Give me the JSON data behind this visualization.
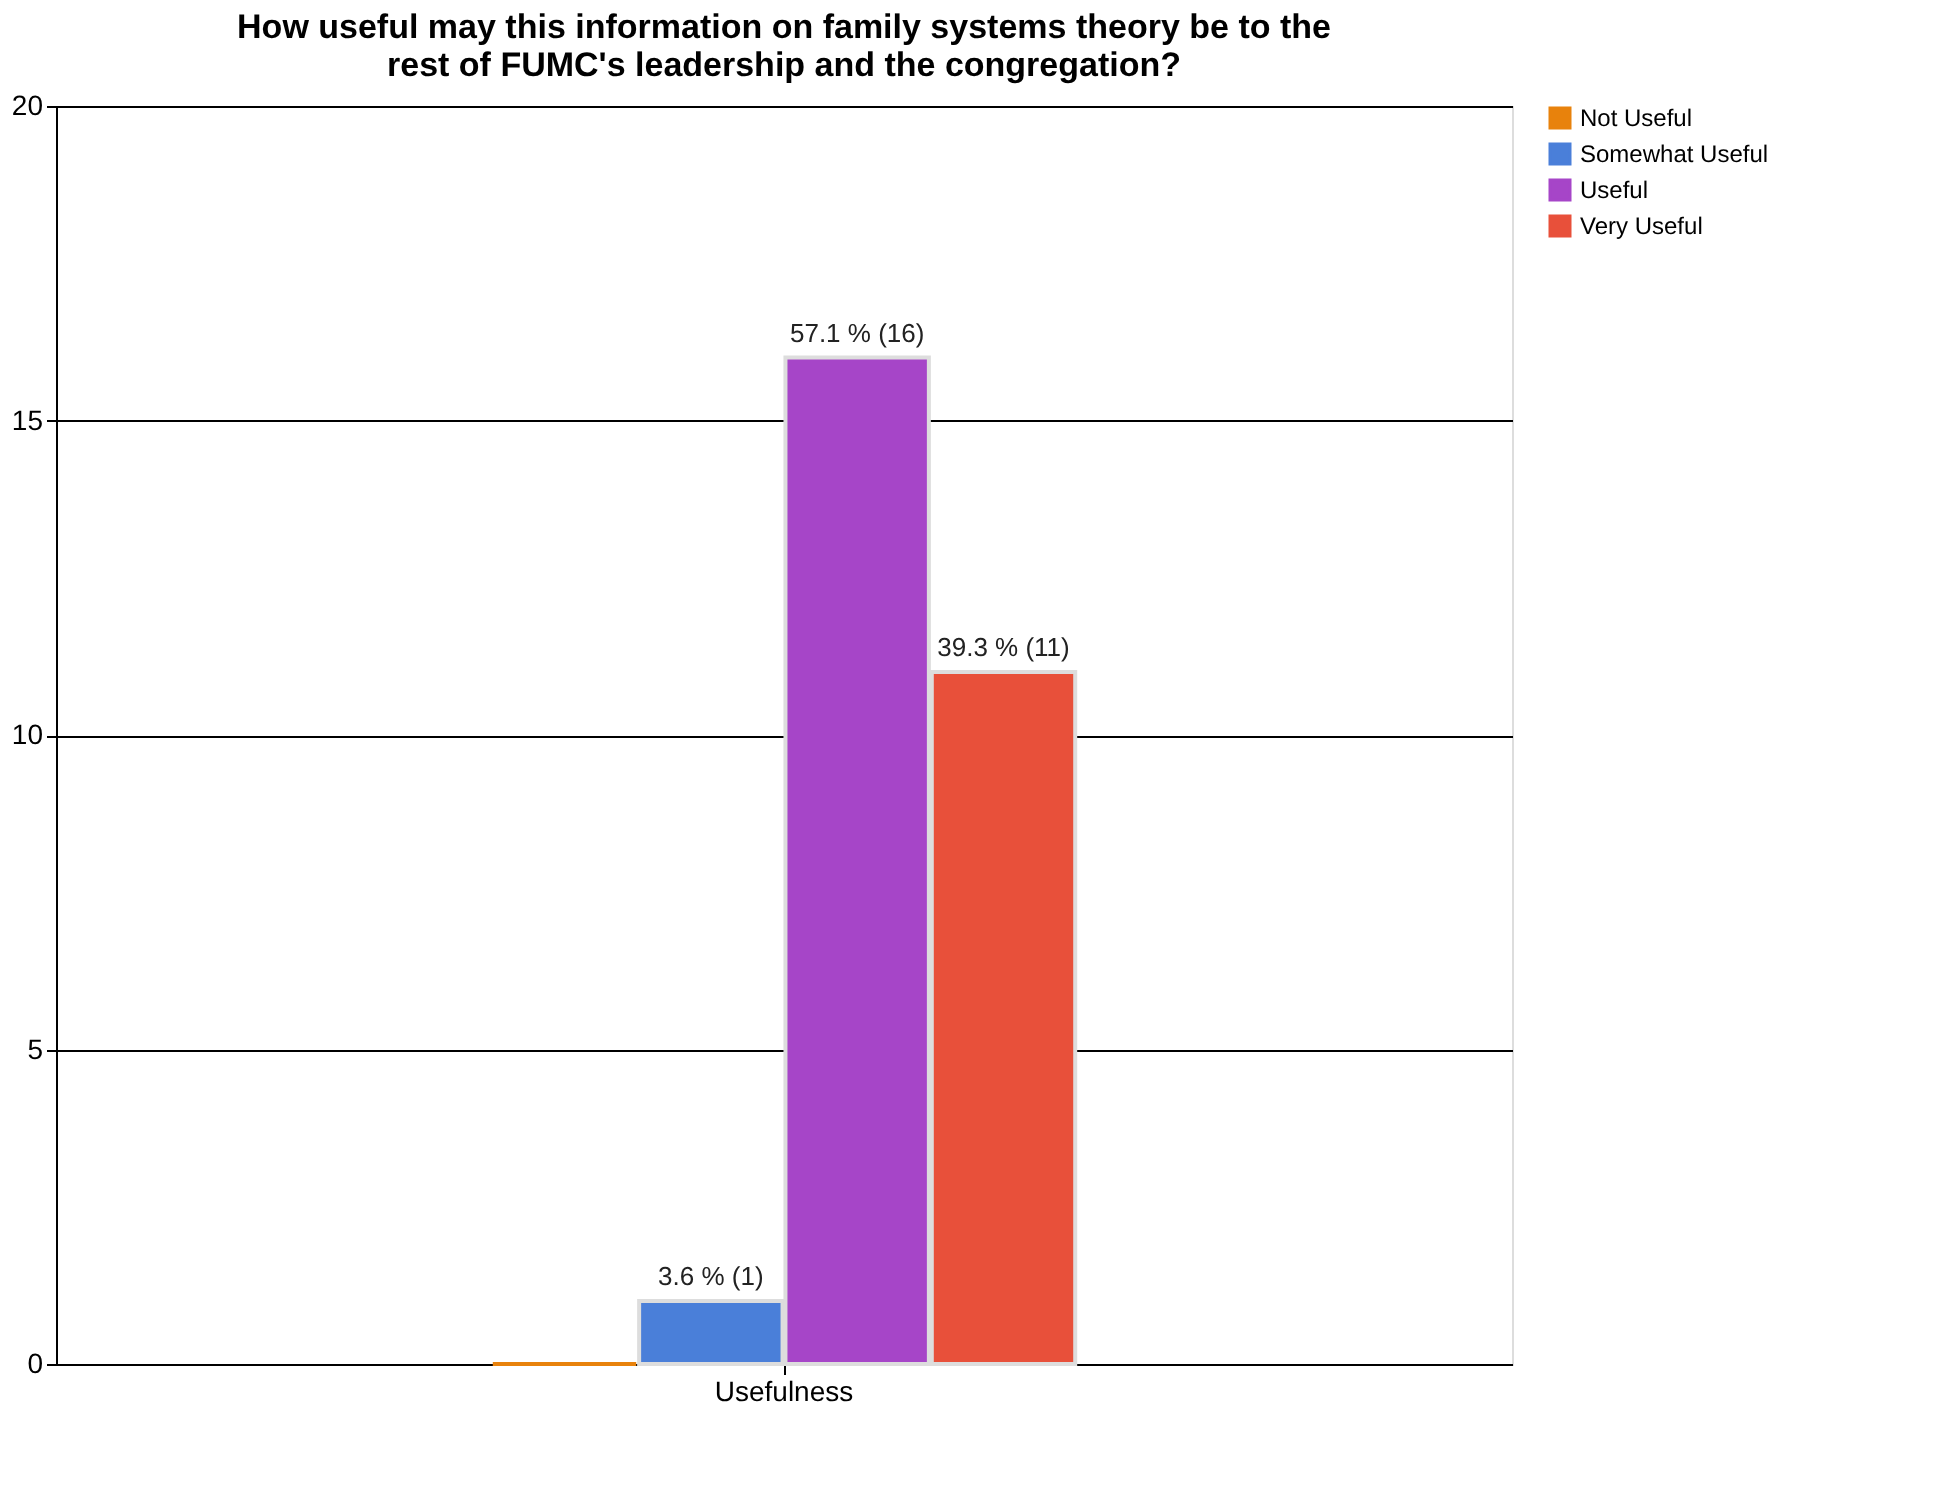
{
  "chart_data": {
    "type": "bar",
    "title": [
      "How useful may this information on family systems theory be to the",
      "rest of FUMC's leadership and the congregation?"
    ],
    "categories": [
      "Usefulness"
    ],
    "series": [
      {
        "name": "Not Useful",
        "color": "#e8820c",
        "values": [
          0
        ],
        "value_labels": [
          null
        ]
      },
      {
        "name": "Somewhat Useful",
        "color": "#4a7fd9",
        "values": [
          1
        ],
        "value_labels": [
          "3.6 % (1)"
        ]
      },
      {
        "name": "Useful",
        "color": "#a645c8",
        "values": [
          16
        ],
        "value_labels": [
          "57.1 % (16)"
        ]
      },
      {
        "name": "Very Useful",
        "color": "#e8503a",
        "values": [
          11
        ],
        "value_labels": [
          "39.3 % (11)"
        ]
      }
    ],
    "ylim": [
      0,
      20
    ],
    "yticks": [
      0,
      5,
      10,
      15,
      20
    ],
    "grid": "y",
    "legend": "right"
  }
}
